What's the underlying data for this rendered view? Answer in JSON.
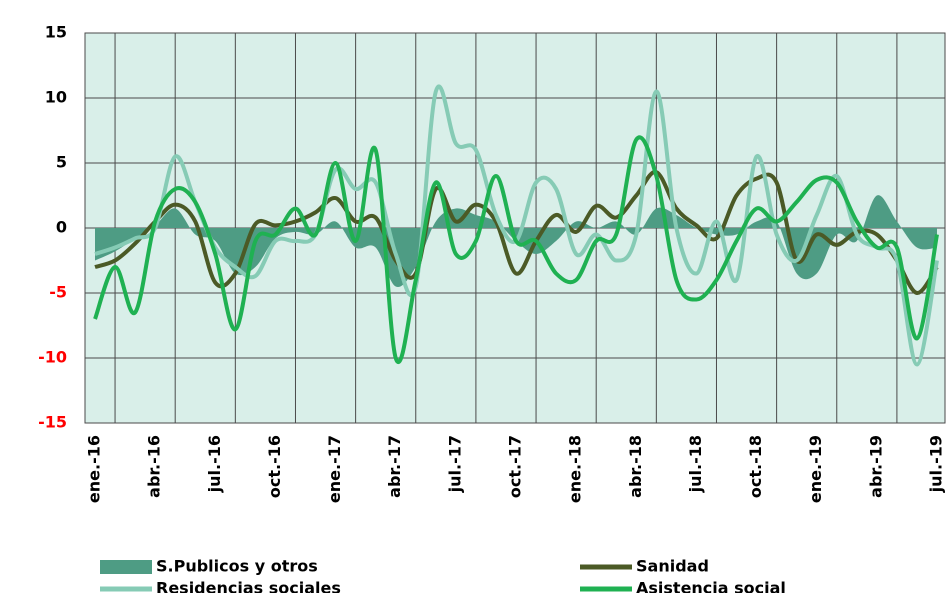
{
  "chart_data": {
    "type": "line",
    "smooth": true,
    "categories": [
      "ene.-16",
      null,
      null,
      "abr.-16",
      null,
      null,
      "jul.-16",
      null,
      null,
      "oct.-16",
      null,
      null,
      "ene.-17",
      null,
      null,
      "abr.-17",
      null,
      null,
      "jul.-17",
      null,
      null,
      "oct.-17",
      null,
      null,
      "ene.-18",
      null,
      null,
      "abr.-18",
      null,
      null,
      "jul.-18",
      null,
      null,
      "oct.-18",
      null,
      null,
      "ene.-19",
      null,
      null,
      "abr.-19",
      null,
      null,
      "jul.-19"
    ],
    "ylim": [
      -15,
      15
    ],
    "yticks": [
      -15,
      -10,
      -5,
      0,
      5,
      10,
      15
    ],
    "negative_tick_color": "#ff0000",
    "plot_background": "#d9efe9",
    "grid": true,
    "series": [
      {
        "name": "S.Publicos y otros",
        "kind": "area",
        "color": "#4e9c84",
        "values": [
          -2.5,
          -1.8,
          -0.8,
          0.2,
          1.5,
          -0.5,
          -1,
          -3.5,
          -3,
          -0.8,
          -0.3,
          -0.5,
          0.5,
          -1.5,
          -1.5,
          -4.5,
          -3,
          0.5,
          1.5,
          1,
          0.5,
          -1,
          -2,
          -1,
          0.5,
          0,
          0.5,
          -0.5,
          1.5,
          1,
          0,
          -0.5,
          -0.5,
          0.5,
          0.5,
          -3.5,
          -3.5,
          -0.5,
          -1,
          2.5,
          0.5,
          -1.5,
          -1.5
        ]
      },
      {
        "name": "Sanidad",
        "kind": "line",
        "color": "#4b5a26",
        "values": [
          -3,
          -2.5,
          -1.2,
          0.5,
          1.8,
          0.5,
          -4.2,
          -3.5,
          0.3,
          0.2,
          0.5,
          1.2,
          2.3,
          0.5,
          0.8,
          -2.5,
          -3.5,
          3,
          0.5,
          1.8,
          0.5,
          -3.5,
          -1,
          1,
          -0.3,
          1.7,
          0.8,
          2.5,
          4.3,
          1.5,
          0.2,
          -0.8,
          2.5,
          3.8,
          3.5,
          -2.5,
          -0.5,
          -1.3,
          -0.3,
          -0.5,
          -2.5,
          -5,
          -3
        ]
      },
      {
        "name": "Residencias sociales",
        "kind": "line",
        "color": "#86cbb5",
        "values": [
          -2,
          -1.5,
          -0.8,
          0,
          5.5,
          2,
          -1.5,
          -3,
          -3.7,
          -1,
          -1,
          -0.5,
          4.5,
          3,
          3.5,
          -2,
          -4.5,
          10.5,
          6.5,
          6,
          1,
          -1,
          3.5,
          3,
          -2,
          -0.5,
          -2.5,
          -0.5,
          10.5,
          0,
          -3.5,
          0.5,
          -4,
          5.5,
          -0.5,
          -2.5,
          1,
          4,
          -0.5,
          -1.5,
          -2.5,
          -10.5,
          -2.5
        ]
      },
      {
        "name": "Asistencia social",
        "kind": "line",
        "color": "#1fb152",
        "values": [
          -7,
          -3,
          -6.5,
          0.5,
          3,
          2,
          -2,
          -7.8,
          -1,
          -0.5,
          1.5,
          -0.5,
          5,
          -1,
          6,
          -10,
          -4,
          3.5,
          -2,
          -1,
          4,
          -1,
          -1,
          -3.5,
          -4,
          -1,
          -0.5,
          6.8,
          4,
          -4,
          -5.5,
          -4,
          -1,
          1.5,
          0.5,
          2,
          3.7,
          3.5,
          0.5,
          -1.5,
          -1.5,
          -8.5,
          -0.5
        ]
      }
    ]
  }
}
